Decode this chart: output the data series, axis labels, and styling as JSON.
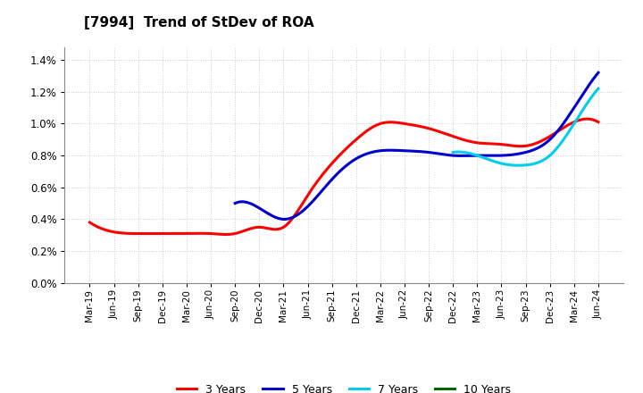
{
  "title": "[7994]  Trend of StDev of ROA",
  "background_color": "#ffffff",
  "plot_background_color": "#ffffff",
  "grid_color": "#aaaaaa",
  "ylim": [
    0.0,
    0.0148
  ],
  "yticks": [
    0.0,
    0.002,
    0.004,
    0.006,
    0.008,
    0.01,
    0.012,
    0.014
  ],
  "ytick_labels": [
    "0.0%",
    "0.2%",
    "0.4%",
    "0.6%",
    "0.8%",
    "1.0%",
    "1.2%",
    "1.4%"
  ],
  "x_labels": [
    "Mar-19",
    "Jun-19",
    "Sep-19",
    "Dec-19",
    "Mar-20",
    "Jun-20",
    "Sep-20",
    "Dec-20",
    "Mar-21",
    "Jun-21",
    "Sep-21",
    "Dec-21",
    "Mar-22",
    "Jun-22",
    "Sep-22",
    "Dec-22",
    "Mar-23",
    "Jun-23",
    "Sep-23",
    "Dec-23",
    "Mar-24",
    "Jun-24"
  ],
  "series": {
    "3 Years": {
      "color": "#ff0000",
      "data": [
        0.0038,
        0.0032,
        0.0031,
        0.0031,
        0.0031,
        0.0031,
        0.0031,
        0.0035,
        0.0035,
        0.0055,
        0.0075,
        0.009,
        0.01,
        0.01,
        0.0097,
        0.0092,
        0.0088,
        0.0087,
        0.0086,
        0.0092,
        0.0101,
        0.0101
      ]
    },
    "5 Years": {
      "color": "#0000cc",
      "data": [
        null,
        null,
        null,
        null,
        null,
        null,
        0.005,
        0.0047,
        0.004,
        0.0048,
        0.0065,
        0.0078,
        0.0083,
        0.0083,
        0.0082,
        0.008,
        0.008,
        0.008,
        0.0082,
        0.009,
        0.011,
        0.0132
      ]
    },
    "7 Years": {
      "color": "#00ccee",
      "data": [
        null,
        null,
        null,
        null,
        null,
        null,
        null,
        null,
        null,
        null,
        null,
        null,
        null,
        null,
        null,
        0.0082,
        0.008,
        0.0075,
        0.0074,
        0.008,
        0.01,
        0.0122
      ]
    },
    "10 Years": {
      "color": "#006600",
      "data": [
        null,
        null,
        null,
        null,
        null,
        null,
        null,
        null,
        null,
        null,
        null,
        null,
        null,
        null,
        null,
        null,
        null,
        null,
        null,
        null,
        null,
        null
      ]
    }
  },
  "legend_labels": [
    "3 Years",
    "5 Years",
    "7 Years",
    "10 Years"
  ],
  "legend_colors": [
    "#ff0000",
    "#0000cc",
    "#00ccee",
    "#006600"
  ],
  "linewidth": 2.2
}
